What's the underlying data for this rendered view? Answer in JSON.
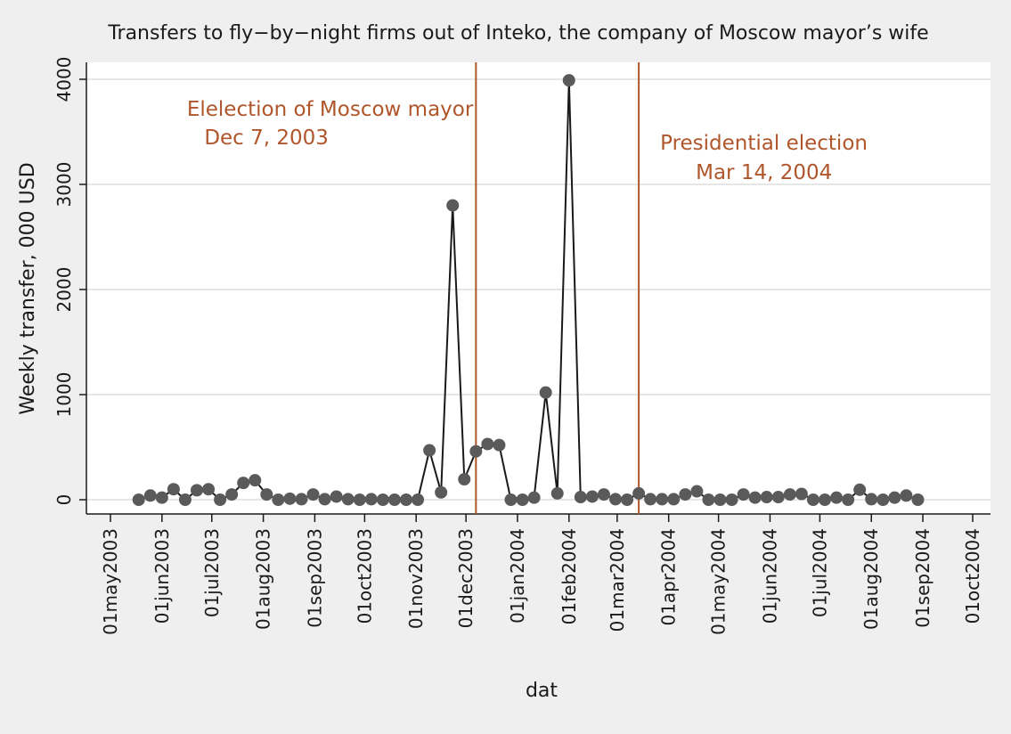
{
  "chart_data": {
    "type": "line",
    "title": "Transfers to fly−by−night firms out of Inteko, the company of Moscow mayor’s wife",
    "xlabel": "dat",
    "ylabel": "Weekly transfer, 000 USD",
    "ylim": [
      0,
      4000
    ],
    "yticks": [
      0,
      1000,
      2000,
      3000,
      4000
    ],
    "yticklabels": [
      "0",
      "1000",
      "2000",
      "3000",
      "4000"
    ],
    "xlim": [
      "2003-05-01",
      "2004-10-01"
    ],
    "xticks": [
      "2003-05-01",
      "2003-06-01",
      "2003-07-01",
      "2003-08-01",
      "2003-09-01",
      "2003-10-01",
      "2003-11-01",
      "2003-12-01",
      "2004-01-01",
      "2004-02-01",
      "2004-03-01",
      "2004-04-01",
      "2004-05-01",
      "2004-06-01",
      "2004-07-01",
      "2004-08-01",
      "2004-09-01",
      "2004-10-01"
    ],
    "xticklabels": [
      "01may2003",
      "01jun2003",
      "01jul2003",
      "01aug2003",
      "01sep2003",
      "01oct2003",
      "01nov2003",
      "01dec2003",
      "01jan2004",
      "01feb2004",
      "01mar2004",
      "01apr2004",
      "01may2004",
      "01jun2004",
      "01jul2004",
      "01aug2004",
      "01sep2004",
      "01oct2004"
    ],
    "grid": true,
    "series": [
      {
        "x": [
          "2003-05-18",
          "2003-05-25",
          "2003-06-01",
          "2003-06-08",
          "2003-06-15",
          "2003-06-22",
          "2003-06-29",
          "2003-07-06",
          "2003-07-13",
          "2003-07-20",
          "2003-07-27",
          "2003-08-03",
          "2003-08-10",
          "2003-08-17",
          "2003-08-24",
          "2003-08-31",
          "2003-09-07",
          "2003-09-14",
          "2003-09-21",
          "2003-09-28",
          "2003-10-05",
          "2003-10-12",
          "2003-10-19",
          "2003-10-26",
          "2003-11-02",
          "2003-11-09",
          "2003-11-16",
          "2003-11-23",
          "2003-11-30",
          "2003-12-07",
          "2003-12-14",
          "2003-12-21",
          "2003-12-28",
          "2004-01-04",
          "2004-01-11",
          "2004-01-18",
          "2004-01-25",
          "2004-02-01",
          "2004-02-08",
          "2004-02-15",
          "2004-02-22",
          "2004-02-29",
          "2004-03-07",
          "2004-03-14",
          "2004-03-21",
          "2004-03-28",
          "2004-04-04",
          "2004-04-11",
          "2004-04-18",
          "2004-04-25",
          "2004-05-02",
          "2004-05-09",
          "2004-05-16",
          "2004-05-23",
          "2004-05-30",
          "2004-06-06",
          "2004-06-13",
          "2004-06-20",
          "2004-06-27",
          "2004-07-04",
          "2004-07-11",
          "2004-07-18",
          "2004-07-25",
          "2004-08-01",
          "2004-08-08",
          "2004-08-15",
          "2004-08-22",
          "2004-08-29"
        ],
        "values": [
          0,
          40,
          20,
          100,
          0,
          90,
          100,
          0,
          50,
          160,
          185,
          50,
          0,
          10,
          5,
          50,
          5,
          30,
          5,
          0,
          5,
          0,
          0,
          0,
          0,
          470,
          70,
          2800,
          195,
          460,
          530,
          520,
          0,
          0,
          20,
          1020,
          60,
          3990,
          25,
          30,
          50,
          5,
          0,
          60,
          5,
          5,
          5,
          50,
          80,
          0,
          0,
          0,
          50,
          20,
          25,
          25,
          50,
          55,
          0,
          0,
          20,
          0,
          95,
          5,
          0,
          20,
          40,
          0
        ]
      }
    ],
    "colors": {
      "line": "#1a1a1a",
      "marker": "#5a5a5a",
      "annotation": "#b0562b"
    },
    "annotations": [
      {
        "x": "2003-12-07",
        "lines": [
          "Elelection of Moscow mayor",
          "Dec 7, 2003"
        ]
      },
      {
        "x": "2004-03-14",
        "lines": [
          "Presidential election",
          "Mar 14, 2004"
        ]
      }
    ]
  }
}
